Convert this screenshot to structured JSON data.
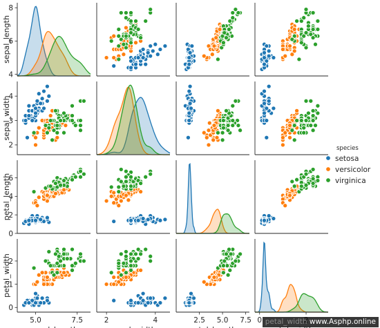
{
  "chart_data": {
    "type": "scatter",
    "subtype": "pairplot",
    "title": "",
    "variables": [
      "sepal_length",
      "sepal_width",
      "petal_length",
      "petal_width"
    ],
    "diagonal": "kde",
    "ranges": {
      "sepal_length": [
        3.9,
        8.3
      ],
      "sepal_width": [
        1.6,
        4.6
      ],
      "petal_length": [
        0.0,
        7.9
      ],
      "petal_width": [
        -0.2,
        2.95
      ]
    },
    "ticks": {
      "sepal_length": [
        4,
        6,
        8
      ],
      "sepal_width": [
        2,
        3,
        4
      ],
      "petal_length": [
        0,
        2,
        4,
        6
      ],
      "petal_width": [
        0,
        1,
        2
      ]
    },
    "bottom_ticks": {
      "sepal_length": [
        "5.0",
        "7.5"
      ],
      "sepal_width": [
        "2",
        "4"
      ],
      "petal_length": [
        "2.5",
        "5.0",
        "7.5"
      ],
      "petal_width": [
        "0",
        "2"
      ]
    },
    "xtick_values": {
      "sepal_length": [
        5.0,
        7.5
      ],
      "sepal_width": [
        2,
        4
      ],
      "petal_length": [
        2.5,
        5.0,
        7.5
      ],
      "petal_width": [
        0,
        2
      ]
    },
    "legend": {
      "title": "species",
      "placement": "right",
      "entries": [
        "setosa",
        "versicolor",
        "virginica"
      ]
    },
    "colors": {
      "setosa": "#1f77b4",
      "versicolor": "#ff7f0e",
      "virginica": "#2ca02c"
    },
    "grid": false,
    "series": [
      {
        "name": "setosa",
        "points": [
          [
            5.1,
            3.5,
            1.4,
            0.2
          ],
          [
            4.9,
            3.0,
            1.4,
            0.2
          ],
          [
            4.7,
            3.2,
            1.3,
            0.2
          ],
          [
            4.6,
            3.1,
            1.5,
            0.2
          ],
          [
            5.0,
            3.6,
            1.4,
            0.2
          ],
          [
            5.4,
            3.9,
            1.7,
            0.4
          ],
          [
            4.6,
            3.4,
            1.4,
            0.3
          ],
          [
            5.0,
            3.4,
            1.5,
            0.2
          ],
          [
            4.4,
            2.9,
            1.4,
            0.2
          ],
          [
            4.9,
            3.1,
            1.5,
            0.1
          ],
          [
            5.4,
            3.7,
            1.5,
            0.2
          ],
          [
            4.8,
            3.4,
            1.6,
            0.2
          ],
          [
            4.8,
            3.0,
            1.4,
            0.1
          ],
          [
            4.3,
            3.0,
            1.1,
            0.1
          ],
          [
            5.8,
            4.0,
            1.2,
            0.2
          ],
          [
            5.7,
            4.4,
            1.5,
            0.4
          ],
          [
            5.4,
            3.9,
            1.3,
            0.4
          ],
          [
            5.1,
            3.5,
            1.4,
            0.3
          ],
          [
            5.7,
            3.8,
            1.7,
            0.3
          ],
          [
            5.1,
            3.8,
            1.5,
            0.3
          ],
          [
            5.4,
            3.4,
            1.7,
            0.2
          ],
          [
            5.1,
            3.7,
            1.5,
            0.4
          ],
          [
            4.6,
            3.6,
            1.0,
            0.2
          ],
          [
            5.1,
            3.3,
            1.7,
            0.5
          ],
          [
            4.8,
            3.4,
            1.9,
            0.2
          ],
          [
            5.0,
            3.0,
            1.6,
            0.2
          ],
          [
            5.0,
            3.4,
            1.6,
            0.4
          ],
          [
            5.2,
            3.5,
            1.5,
            0.2
          ],
          [
            5.2,
            3.4,
            1.4,
            0.2
          ],
          [
            4.7,
            3.2,
            1.6,
            0.2
          ],
          [
            4.8,
            3.1,
            1.6,
            0.2
          ],
          [
            5.4,
            3.4,
            1.5,
            0.4
          ],
          [
            5.2,
            4.1,
            1.5,
            0.1
          ],
          [
            5.5,
            4.2,
            1.4,
            0.2
          ],
          [
            4.9,
            3.1,
            1.5,
            0.2
          ],
          [
            5.0,
            3.2,
            1.2,
            0.2
          ],
          [
            5.5,
            3.5,
            1.3,
            0.2
          ],
          [
            4.9,
            3.6,
            1.4,
            0.1
          ],
          [
            4.4,
            3.0,
            1.3,
            0.2
          ],
          [
            5.1,
            3.4,
            1.5,
            0.2
          ],
          [
            5.0,
            3.5,
            1.3,
            0.3
          ],
          [
            4.5,
            2.3,
            1.3,
            0.3
          ],
          [
            4.4,
            3.2,
            1.3,
            0.2
          ],
          [
            5.0,
            3.5,
            1.6,
            0.6
          ],
          [
            5.1,
            3.8,
            1.9,
            0.4
          ],
          [
            4.8,
            3.0,
            1.4,
            0.3
          ],
          [
            5.1,
            3.8,
            1.6,
            0.2
          ],
          [
            4.6,
            3.2,
            1.4,
            0.2
          ],
          [
            5.3,
            3.7,
            1.5,
            0.2
          ],
          [
            5.0,
            3.3,
            1.4,
            0.2
          ]
        ]
      },
      {
        "name": "versicolor",
        "points": [
          [
            7.0,
            3.2,
            4.7,
            1.4
          ],
          [
            6.4,
            3.2,
            4.5,
            1.5
          ],
          [
            6.9,
            3.1,
            4.9,
            1.5
          ],
          [
            5.5,
            2.3,
            4.0,
            1.3
          ],
          [
            6.5,
            2.8,
            4.6,
            1.5
          ],
          [
            5.7,
            2.8,
            4.5,
            1.3
          ],
          [
            6.3,
            3.3,
            4.7,
            1.6
          ],
          [
            4.9,
            2.4,
            3.3,
            1.0
          ],
          [
            6.6,
            2.9,
            4.6,
            1.3
          ],
          [
            5.2,
            2.7,
            3.9,
            1.4
          ],
          [
            5.0,
            2.0,
            3.5,
            1.0
          ],
          [
            5.9,
            3.0,
            4.2,
            1.5
          ],
          [
            6.0,
            2.2,
            4.0,
            1.0
          ],
          [
            6.1,
            2.9,
            4.7,
            1.4
          ],
          [
            5.6,
            2.9,
            3.6,
            1.3
          ],
          [
            6.7,
            3.1,
            4.4,
            1.4
          ],
          [
            5.6,
            3.0,
            4.5,
            1.5
          ],
          [
            5.8,
            2.7,
            4.1,
            1.0
          ],
          [
            6.2,
            2.2,
            4.5,
            1.5
          ],
          [
            5.6,
            2.5,
            3.9,
            1.1
          ],
          [
            5.9,
            3.2,
            4.8,
            1.8
          ],
          [
            6.1,
            2.8,
            4.0,
            1.3
          ],
          [
            6.3,
            2.5,
            4.9,
            1.5
          ],
          [
            6.1,
            2.8,
            4.7,
            1.2
          ],
          [
            6.4,
            2.9,
            4.3,
            1.3
          ],
          [
            6.6,
            3.0,
            4.4,
            1.4
          ],
          [
            6.8,
            2.8,
            4.8,
            1.4
          ],
          [
            6.7,
            3.0,
            5.0,
            1.7
          ],
          [
            6.0,
            2.9,
            4.5,
            1.5
          ],
          [
            5.7,
            2.6,
            3.5,
            1.0
          ],
          [
            5.5,
            2.4,
            3.8,
            1.1
          ],
          [
            5.5,
            2.4,
            3.7,
            1.0
          ],
          [
            5.8,
            2.7,
            3.9,
            1.2
          ],
          [
            6.0,
            2.7,
            5.1,
            1.6
          ],
          [
            5.4,
            3.0,
            4.5,
            1.5
          ],
          [
            6.0,
            3.4,
            4.5,
            1.6
          ],
          [
            6.7,
            3.1,
            4.7,
            1.5
          ],
          [
            6.3,
            2.3,
            4.4,
            1.3
          ],
          [
            5.6,
            3.0,
            4.1,
            1.3
          ],
          [
            5.5,
            2.5,
            4.0,
            1.3
          ],
          [
            5.5,
            2.6,
            4.4,
            1.2
          ],
          [
            6.1,
            3.0,
            4.6,
            1.4
          ],
          [
            5.8,
            2.6,
            4.0,
            1.2
          ],
          [
            5.0,
            2.3,
            3.3,
            1.0
          ],
          [
            5.6,
            2.7,
            4.2,
            1.3
          ],
          [
            5.7,
            3.0,
            4.2,
            1.2
          ],
          [
            5.7,
            2.9,
            4.2,
            1.3
          ],
          [
            6.2,
            2.9,
            4.3,
            1.3
          ],
          [
            5.1,
            2.5,
            3.0,
            1.1
          ],
          [
            5.7,
            2.8,
            4.1,
            1.3
          ]
        ]
      },
      {
        "name": "virginica",
        "points": [
          [
            6.3,
            3.3,
            6.0,
            2.5
          ],
          [
            5.8,
            2.7,
            5.1,
            1.9
          ],
          [
            7.1,
            3.0,
            5.9,
            2.1
          ],
          [
            6.3,
            2.9,
            5.6,
            1.8
          ],
          [
            6.5,
            3.0,
            5.8,
            2.2
          ],
          [
            7.6,
            3.0,
            6.6,
            2.1
          ],
          [
            4.9,
            2.5,
            4.5,
            1.7
          ],
          [
            7.3,
            2.9,
            6.3,
            1.8
          ],
          [
            6.7,
            2.5,
            5.8,
            1.8
          ],
          [
            7.2,
            3.6,
            6.1,
            2.5
          ],
          [
            6.5,
            3.2,
            5.1,
            2.0
          ],
          [
            6.4,
            2.7,
            5.3,
            1.9
          ],
          [
            6.8,
            3.0,
            5.5,
            2.1
          ],
          [
            5.7,
            2.5,
            5.0,
            2.0
          ],
          [
            5.8,
            2.8,
            5.1,
            2.4
          ],
          [
            6.4,
            3.2,
            5.3,
            2.3
          ],
          [
            6.5,
            3.0,
            5.5,
            1.8
          ],
          [
            7.7,
            3.8,
            6.7,
            2.2
          ],
          [
            7.7,
            2.6,
            6.9,
            2.3
          ],
          [
            6.0,
            2.2,
            5.0,
            1.5
          ],
          [
            6.9,
            3.2,
            5.7,
            2.3
          ],
          [
            5.6,
            2.8,
            4.9,
            2.0
          ],
          [
            7.7,
            2.8,
            6.7,
            2.0
          ],
          [
            6.3,
            2.7,
            4.9,
            1.8
          ],
          [
            6.7,
            3.3,
            5.7,
            2.1
          ],
          [
            7.2,
            3.2,
            6.0,
            1.8
          ],
          [
            6.2,
            2.8,
            4.8,
            1.8
          ],
          [
            6.1,
            3.0,
            4.9,
            1.8
          ],
          [
            6.4,
            2.8,
            5.6,
            2.1
          ],
          [
            7.2,
            3.0,
            5.8,
            1.6
          ],
          [
            7.4,
            2.8,
            6.1,
            1.9
          ],
          [
            7.9,
            3.8,
            6.4,
            2.0
          ],
          [
            6.4,
            2.8,
            5.6,
            2.2
          ],
          [
            6.3,
            2.8,
            5.1,
            1.5
          ],
          [
            6.1,
            2.6,
            5.6,
            1.4
          ],
          [
            7.7,
            3.0,
            6.1,
            2.3
          ],
          [
            6.3,
            3.4,
            5.6,
            2.4
          ],
          [
            6.4,
            3.1,
            5.5,
            1.8
          ],
          [
            6.0,
            3.0,
            4.8,
            1.8
          ],
          [
            6.9,
            3.1,
            5.4,
            2.1
          ],
          [
            6.7,
            3.1,
            5.6,
            2.4
          ],
          [
            6.9,
            3.1,
            5.1,
            2.3
          ],
          [
            5.8,
            2.7,
            5.1,
            1.9
          ],
          [
            6.8,
            3.2,
            5.9,
            2.3
          ],
          [
            6.7,
            3.3,
            5.7,
            2.5
          ],
          [
            6.7,
            3.0,
            5.2,
            2.3
          ],
          [
            6.3,
            2.5,
            5.0,
            1.9
          ],
          [
            6.5,
            3.0,
            5.2,
            2.0
          ],
          [
            6.2,
            3.4,
            5.4,
            2.3
          ],
          [
            5.9,
            3.0,
            5.1,
            1.8
          ]
        ]
      }
    ]
  },
  "watermark": {
    "text": "www.Asphp.online",
    "ghost": "petal_width"
  }
}
